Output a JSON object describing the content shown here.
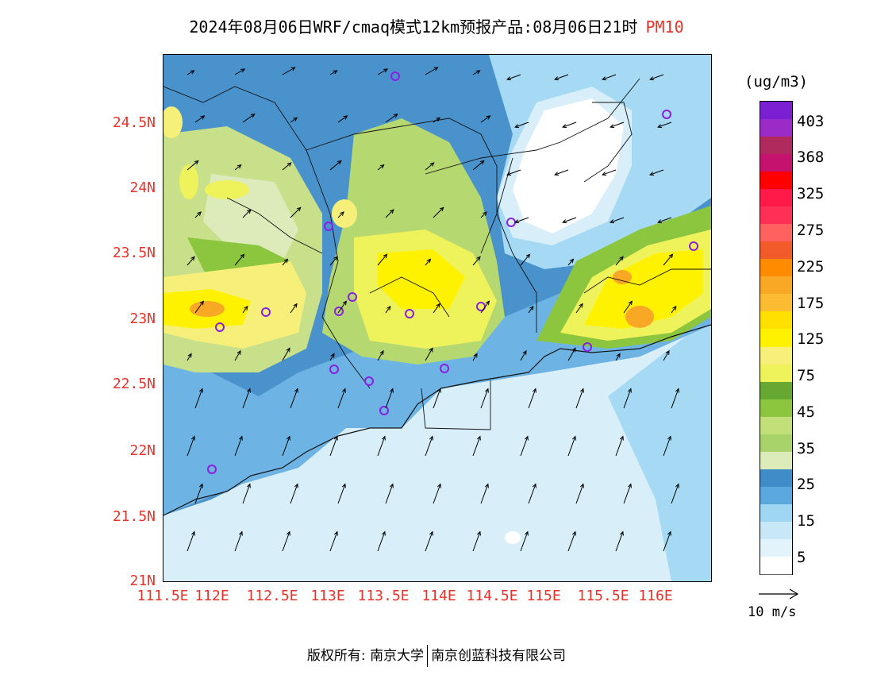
{
  "title": {
    "main": "2024年08月06日WRF/cmaq模式12km预报产品:08月06日21时",
    "variable": "PM10"
  },
  "axes": {
    "lat_labels": [
      "24.5N",
      "24N",
      "23.5N",
      "23N",
      "22.5N",
      "22N",
      "21.5N",
      "21N"
    ],
    "lon_labels": [
      "111.5E",
      "112E",
      "112.5E",
      "113E",
      "113.5E",
      "114E",
      "114.5E",
      "115E",
      "115.5E",
      "116E"
    ]
  },
  "legend": {
    "unit": "(ug/m3)",
    "labels": [
      "403",
      "368",
      "325",
      "275",
      "225",
      "175",
      "125",
      "75",
      "45",
      "35",
      "25",
      "15",
      "5"
    ],
    "colors": [
      "#7a1fd1",
      "#9a2bc7",
      "#b02a5e",
      "#c5126e",
      "#ff0000",
      "#ff1a4a",
      "#ff2f55",
      "#ff6060",
      "#f25a2a",
      "#ff8c00",
      "#f9a825",
      "#fcbc32",
      "#ffe000",
      "#fff200",
      "#f6ef7a",
      "#eef35c",
      "#67a832",
      "#8cc63f",
      "#c2df7a",
      "#a8d26a",
      "#dcebb9",
      "#3f8cc9",
      "#5aa8de",
      "#9fd6f2",
      "#c8e8f7",
      "#e3f3fb",
      "#ffffff"
    ]
  },
  "wind": {
    "reference_label": "10 m/s"
  },
  "footer": {
    "copyright_label": "版权所有:",
    "org1": "南京大学",
    "org2": "南京创蓝科技有限公司"
  }
}
